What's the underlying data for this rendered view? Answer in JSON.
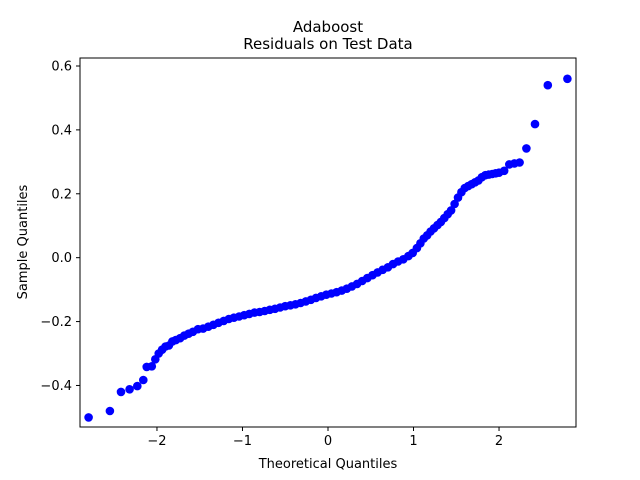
{
  "chart_data": {
    "type": "scatter",
    "title": "Adaboost",
    "subtitle": "Residuals on Test Data",
    "xlabel": "Theoretical Quantiles",
    "ylabel": "Sample Quantiles",
    "xlim": [
      -2.9,
      2.9
    ],
    "ylim": [
      -0.53,
      0.625
    ],
    "xticks": [
      -2,
      -1,
      0,
      1,
      2
    ],
    "xtick_labels": [
      "−2",
      "−1",
      "0",
      "1",
      "2"
    ],
    "yticks": [
      -0.4,
      -0.2,
      0.0,
      0.2,
      0.4,
      0.6
    ],
    "ytick_labels": [
      "−0.4",
      "−0.2",
      "0.0",
      "0.2",
      "0.4",
      "0.6"
    ],
    "grid": false,
    "marker_color": "#0000ff",
    "points": [
      [
        -2.8,
        -0.5
      ],
      [
        -2.55,
        -0.48
      ],
      [
        -2.42,
        -0.42
      ],
      [
        -2.32,
        -0.412
      ],
      [
        -2.23,
        -0.402
      ],
      [
        -2.16,
        -0.383
      ],
      [
        -2.12,
        -0.342
      ],
      [
        -2.06,
        -0.34
      ],
      [
        -2.02,
        -0.318
      ],
      [
        -1.98,
        -0.3
      ],
      [
        -1.94,
        -0.288
      ],
      [
        -1.9,
        -0.278
      ],
      [
        -1.86,
        -0.275
      ],
      [
        -1.82,
        -0.262
      ],
      [
        -1.78,
        -0.258
      ],
      [
        -1.73,
        -0.252
      ],
      [
        -1.68,
        -0.244
      ],
      [
        -1.63,
        -0.238
      ],
      [
        -1.58,
        -0.232
      ],
      [
        -1.52,
        -0.224
      ],
      [
        -1.46,
        -0.222
      ],
      [
        -1.4,
        -0.216
      ],
      [
        -1.34,
        -0.21
      ],
      [
        -1.28,
        -0.204
      ],
      [
        -1.22,
        -0.198
      ],
      [
        -1.16,
        -0.192
      ],
      [
        -1.1,
        -0.188
      ],
      [
        -1.04,
        -0.184
      ],
      [
        -0.98,
        -0.18
      ],
      [
        -0.92,
        -0.176
      ],
      [
        -0.86,
        -0.172
      ],
      [
        -0.8,
        -0.17
      ],
      [
        -0.74,
        -0.167
      ],
      [
        -0.68,
        -0.163
      ],
      [
        -0.62,
        -0.16
      ],
      [
        -0.56,
        -0.156
      ],
      [
        -0.5,
        -0.152
      ],
      [
        -0.44,
        -0.149
      ],
      [
        -0.38,
        -0.146
      ],
      [
        -0.32,
        -0.142
      ],
      [
        -0.26,
        -0.137
      ],
      [
        -0.2,
        -0.132
      ],
      [
        -0.14,
        -0.126
      ],
      [
        -0.08,
        -0.121
      ],
      [
        -0.02,
        -0.116
      ],
      [
        0.04,
        -0.112
      ],
      [
        0.1,
        -0.108
      ],
      [
        0.16,
        -0.103
      ],
      [
        0.22,
        -0.097
      ],
      [
        0.28,
        -0.09
      ],
      [
        0.34,
        -0.082
      ],
      [
        0.4,
        -0.073
      ],
      [
        0.46,
        -0.064
      ],
      [
        0.52,
        -0.055
      ],
      [
        0.58,
        -0.046
      ],
      [
        0.64,
        -0.038
      ],
      [
        0.7,
        -0.03
      ],
      [
        0.76,
        -0.02
      ],
      [
        0.82,
        -0.012
      ],
      [
        0.88,
        -0.005
      ],
      [
        0.94,
        0.005
      ],
      [
        0.99,
        0.015
      ],
      [
        1.04,
        0.03
      ],
      [
        1.08,
        0.045
      ],
      [
        1.12,
        0.06
      ],
      [
        1.16,
        0.07
      ],
      [
        1.2,
        0.082
      ],
      [
        1.24,
        0.092
      ],
      [
        1.28,
        0.102
      ],
      [
        1.32,
        0.112
      ],
      [
        1.36,
        0.124
      ],
      [
        1.4,
        0.136
      ],
      [
        1.44,
        0.148
      ],
      [
        1.48,
        0.168
      ],
      [
        1.52,
        0.188
      ],
      [
        1.56,
        0.205
      ],
      [
        1.6,
        0.218
      ],
      [
        1.64,
        0.224
      ],
      [
        1.68,
        0.23
      ],
      [
        1.72,
        0.236
      ],
      [
        1.76,
        0.242
      ],
      [
        1.8,
        0.252
      ],
      [
        1.84,
        0.258
      ],
      [
        1.88,
        0.26
      ],
      [
        1.92,
        0.262
      ],
      [
        1.96,
        0.264
      ],
      [
        2.0,
        0.266
      ],
      [
        2.06,
        0.272
      ],
      [
        2.12,
        0.292
      ],
      [
        2.18,
        0.295
      ],
      [
        2.24,
        0.298
      ],
      [
        2.32,
        0.342
      ],
      [
        2.42,
        0.418
      ],
      [
        2.57,
        0.54
      ],
      [
        2.8,
        0.56
      ]
    ]
  }
}
